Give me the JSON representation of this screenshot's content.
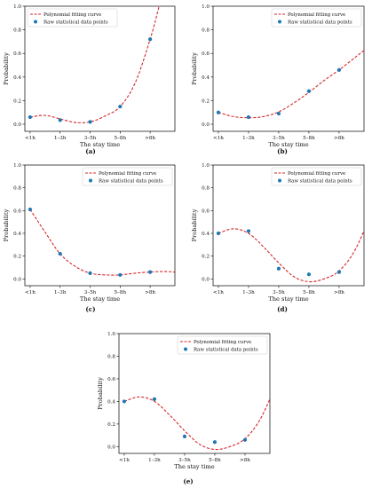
{
  "chart_data": [
    {
      "type": "line",
      "panel_label": "(a)",
      "xlabel": "The stay time",
      "ylabel": "Probability",
      "categories": [
        "<1h",
        "1–3h",
        "3–5h",
        "5–8h",
        ">8h"
      ],
      "ylim": [
        -0.06,
        1.0
      ],
      "yticks": [
        "0.0",
        "0.2",
        "0.4",
        "0.6",
        "0.8",
        "1.0"
      ],
      "yticks_values": [
        0.0,
        0.2,
        0.4,
        0.6,
        0.8,
        1.0
      ],
      "legend": {
        "placement": "top-left",
        "curve": "Polynomial fitting curve",
        "points": "Raw statistical data points"
      },
      "series": [
        {
          "kind": "points",
          "values": [
            0.06,
            0.035,
            0.02,
            0.15,
            0.72
          ]
        },
        {
          "kind": "curve",
          "x": [
            0,
            0.5,
            1,
            1.5,
            2,
            2.5,
            3,
            3.5,
            4,
            4.3
          ],
          "values": [
            0.06,
            0.075,
            0.045,
            0.015,
            0.02,
            0.07,
            0.15,
            0.35,
            0.72,
            1.0
          ]
        }
      ]
    },
    {
      "type": "line",
      "panel_label": "(b)",
      "xlabel": "The stay time",
      "ylabel": "Probability",
      "categories": [
        "<1h",
        "1–3h",
        "3–5h",
        "5–8h",
        ">8h"
      ],
      "ylim": [
        -0.06,
        1.0
      ],
      "yticks": [
        "0.0",
        "0.2",
        "0.4",
        "0.6",
        "0.8",
        "1.0"
      ],
      "yticks_values": [
        0.0,
        0.2,
        0.4,
        0.6,
        0.8,
        1.0
      ],
      "legend": {
        "placement": "top-right",
        "curve": "Polynomial fitting curve",
        "points": "Raw statistical data points"
      },
      "series": [
        {
          "kind": "points",
          "values": [
            0.1,
            0.06,
            0.09,
            0.28,
            0.46
          ]
        },
        {
          "kind": "curve",
          "x": [
            0,
            0.5,
            1,
            1.5,
            2,
            2.5,
            3,
            3.5,
            4,
            4.5,
            5.0
          ],
          "values": [
            0.1,
            0.065,
            0.055,
            0.065,
            0.105,
            0.18,
            0.27,
            0.37,
            0.46,
            0.56,
            0.66
          ]
        }
      ]
    },
    {
      "type": "line",
      "panel_label": "(c)",
      "xlabel": "The stay time",
      "ylabel": "Probability",
      "categories": [
        "<1h",
        "1–3h",
        "3–5h",
        "5–8h",
        ">8h"
      ],
      "ylim": [
        -0.06,
        1.0
      ],
      "yticks": [
        "0.0",
        "0.2",
        "0.4",
        "0.6",
        "0.8",
        "1.0"
      ],
      "yticks_values": [
        0.0,
        0.2,
        0.4,
        0.6,
        0.8,
        1.0
      ],
      "legend": {
        "placement": "top-right",
        "curve": "Polynomial fitting curve",
        "points": "Raw statistical data points"
      },
      "series": [
        {
          "kind": "points",
          "values": [
            0.61,
            0.22,
            0.05,
            0.035,
            0.06
          ]
        },
        {
          "kind": "curve",
          "x": [
            0,
            0.5,
            1,
            1.5,
            2,
            2.5,
            3,
            3.5,
            4,
            4.5,
            5.0
          ],
          "values": [
            0.61,
            0.41,
            0.22,
            0.11,
            0.05,
            0.035,
            0.035,
            0.05,
            0.06,
            0.065,
            0.055
          ]
        }
      ]
    },
    {
      "type": "line",
      "panel_label": "(d)",
      "xlabel": "The stay time",
      "ylabel": "Probability",
      "categories": [
        "<1h",
        "1–3h",
        "3–5h",
        "5–8h",
        ">8h"
      ],
      "ylim": [
        -0.06,
        1.0
      ],
      "yticks": [
        "0.0",
        "0.2",
        "0.4",
        "0.6",
        "0.8",
        "1.0"
      ],
      "yticks_values": [
        0.0,
        0.2,
        0.4,
        0.6,
        0.8,
        1.0
      ],
      "legend": {
        "placement": "top-right",
        "curve": "Polynomial fitting curve",
        "points": "Raw statistical data points"
      },
      "series": [
        {
          "kind": "points",
          "values": [
            0.4,
            0.42,
            0.09,
            0.04,
            0.06
          ]
        },
        {
          "kind": "curve",
          "x": [
            0,
            0.5,
            1,
            1.5,
            2,
            2.5,
            3,
            3.5,
            4,
            4.5,
            5.0
          ],
          "values": [
            0.4,
            0.44,
            0.4,
            0.28,
            0.14,
            0.02,
            -0.025,
            0.0,
            0.07,
            0.24,
            0.53
          ]
        }
      ]
    },
    {
      "type": "line",
      "panel_label": "(e)",
      "xlabel": "The stay time",
      "ylabel": "Probability",
      "categories": [
        "<1h",
        "1–3h",
        "3–5h",
        "5–8h",
        ">8h"
      ],
      "ylim": [
        -0.06,
        1.0
      ],
      "yticks": [
        "0.0",
        "0.2",
        "0.4",
        "0.6",
        "0.8",
        "1.0"
      ],
      "yticks_values": [
        0.0,
        0.2,
        0.4,
        0.6,
        0.8,
        1.0
      ],
      "legend": {
        "placement": "top-right",
        "curve": "Polynomial fitting curve",
        "points": "Raw statistical data points"
      },
      "series": [
        {
          "kind": "points",
          "values": [
            0.4,
            0.42,
            0.09,
            0.04,
            0.06
          ]
        },
        {
          "kind": "curve",
          "x": [
            0,
            0.5,
            1,
            1.5,
            2,
            2.5,
            3,
            3.5,
            4,
            4.5,
            5.0
          ],
          "values": [
            0.4,
            0.44,
            0.4,
            0.28,
            0.14,
            0.02,
            -0.025,
            0.0,
            0.07,
            0.24,
            0.53
          ]
        }
      ]
    }
  ],
  "colors": {
    "curve": "#d62728",
    "points": "#1f77b4",
    "axis": "#000000"
  }
}
